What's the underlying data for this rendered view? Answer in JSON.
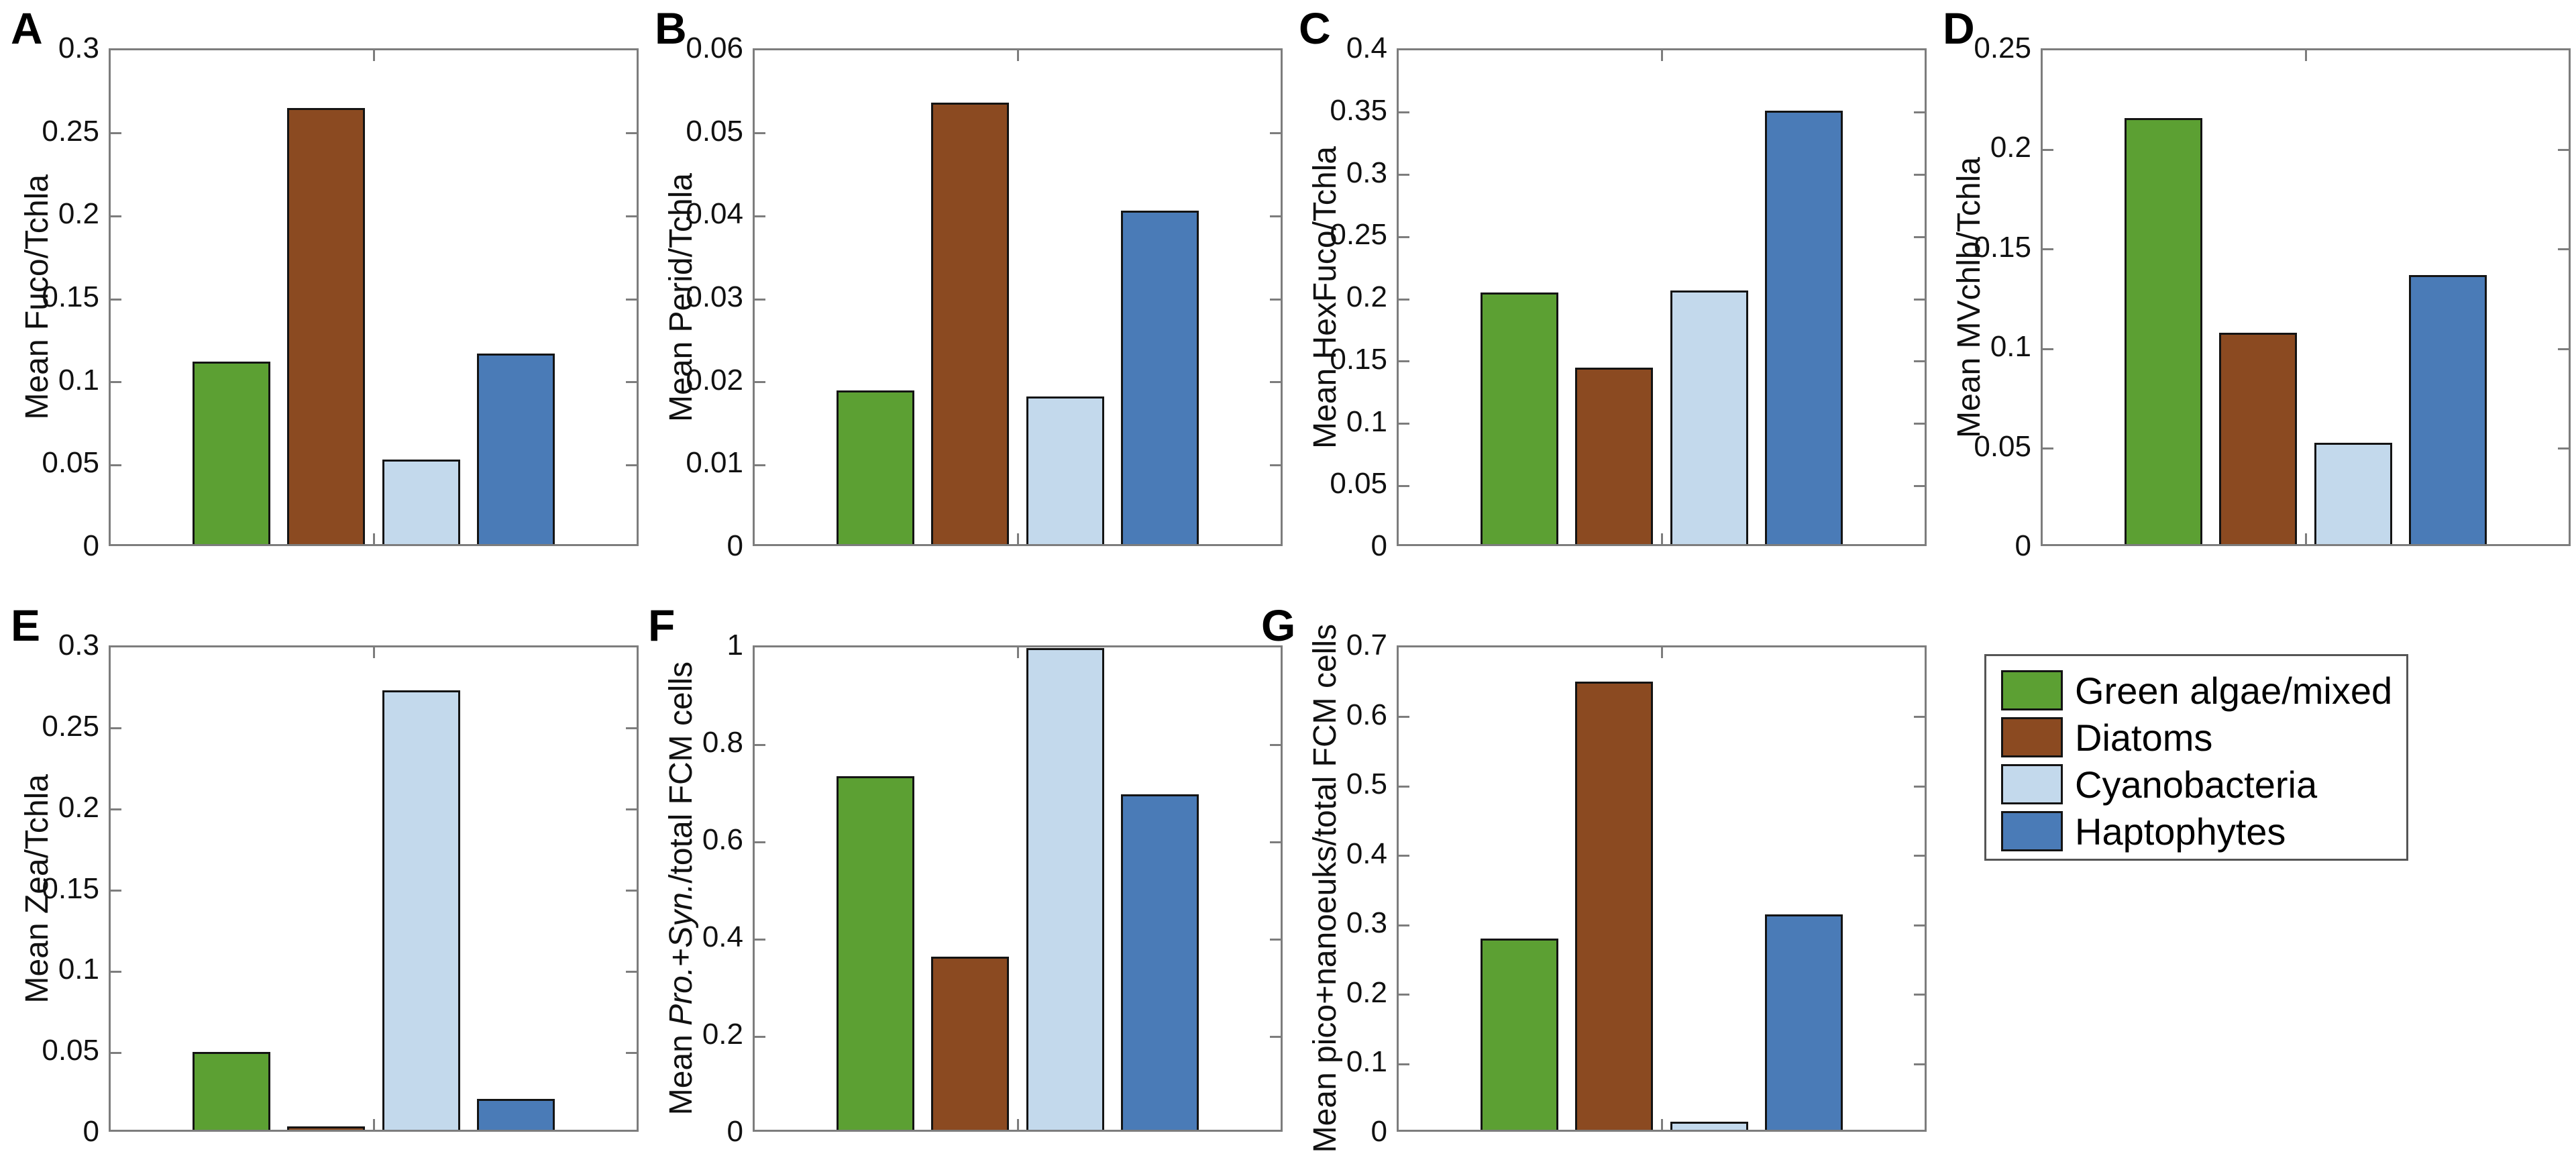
{
  "figure": {
    "background": "#ffffff",
    "axis_color": "#7d7d7d",
    "text_color": "#111111"
  },
  "legend": {
    "items": [
      {
        "label": "Green algae/mixed",
        "color": "#5CA033"
      },
      {
        "label": "Diatoms",
        "color": "#8B4A21"
      },
      {
        "label": "Cyanobacteria",
        "color": "#C3D9EC"
      },
      {
        "label": "Haptophytes",
        "color": "#4A7BB7"
      }
    ],
    "position": "bottom-right"
  },
  "chart_data": [
    {
      "panel": "A",
      "type": "bar",
      "ylabel": "Mean Fuco/Tchla",
      "ylabel_parts": [
        {
          "text": "Mean Fuco/Tchla",
          "italic": false
        }
      ],
      "categories": [
        "Green algae/mixed",
        "Diatoms",
        "Cyanobacteria",
        "Haptophytes"
      ],
      "values": [
        0.11,
        0.263,
        0.051,
        0.115
      ],
      "ylim": [
        0,
        0.3
      ],
      "yticks": [
        0,
        0.05,
        0.1,
        0.15,
        0.2,
        0.25,
        0.3
      ],
      "ytick_labels": [
        "0",
        "0.05",
        "0.1",
        "0.15",
        "0.2",
        "0.25",
        "0.3"
      ]
    },
    {
      "panel": "B",
      "type": "bar",
      "ylabel": "Mean Perid/Tchla",
      "ylabel_parts": [
        {
          "text": "Mean Perid/Tchla",
          "italic": false
        }
      ],
      "categories": [
        "Green algae/mixed",
        "Diatoms",
        "Cyanobacteria",
        "Haptophytes"
      ],
      "values": [
        0.0185,
        0.0532,
        0.0178,
        0.0402
      ],
      "ylim": [
        0,
        0.06
      ],
      "yticks": [
        0,
        0.01,
        0.02,
        0.03,
        0.04,
        0.05,
        0.06
      ],
      "ytick_labels": [
        "0",
        "0.01",
        "0.02",
        "0.03",
        "0.04",
        "0.05",
        "0.06"
      ]
    },
    {
      "panel": "C",
      "type": "bar",
      "ylabel": "Mean HexFuco/Tchla",
      "ylabel_parts": [
        {
          "text": "Mean HexFuco/Tchla",
          "italic": false
        }
      ],
      "categories": [
        "Green algae/mixed",
        "Diatoms",
        "Cyanobacteria",
        "Haptophytes"
      ],
      "values": [
        0.202,
        0.142,
        0.204,
        0.348
      ],
      "ylim": [
        0,
        0.4
      ],
      "yticks": [
        0,
        0.05,
        0.1,
        0.15,
        0.2,
        0.25,
        0.3,
        0.35,
        0.4
      ],
      "ytick_labels": [
        "0",
        "0.05",
        "0.1",
        "0.15",
        "0.2",
        "0.25",
        "0.3",
        "0.35",
        "0.4"
      ]
    },
    {
      "panel": "D",
      "type": "bar",
      "ylabel": "Mean MVchlb/Tchla",
      "ylabel_parts": [
        {
          "text": "Mean MVchlb/Tchla",
          "italic": false
        }
      ],
      "categories": [
        "Green algae/mixed",
        "Diatoms",
        "Cyanobacteria",
        "Haptophytes"
      ],
      "values": [
        0.214,
        0.106,
        0.051,
        0.135
      ],
      "ylim": [
        0,
        0.25
      ],
      "yticks": [
        0,
        0.05,
        0.1,
        0.15,
        0.2,
        0.25
      ],
      "ytick_labels": [
        "0",
        "0.05",
        "0.1",
        "0.15",
        "0.2",
        "0.25"
      ]
    },
    {
      "panel": "E",
      "type": "bar",
      "ylabel": "Mean Zea/Tchla",
      "ylabel_parts": [
        {
          "text": "Mean Zea/Tchla",
          "italic": false
        }
      ],
      "categories": [
        "Green algae/mixed",
        "Diatoms",
        "Cyanobacteria",
        "Haptophytes"
      ],
      "values": [
        0.048,
        0.002,
        0.271,
        0.019
      ],
      "ylim": [
        0,
        0.3
      ],
      "yticks": [
        0,
        0.05,
        0.1,
        0.15,
        0.2,
        0.25,
        0.3
      ],
      "ytick_labels": [
        "0",
        "0.05",
        "0.1",
        "0.15",
        "0.2",
        "0.25",
        "0.3"
      ]
    },
    {
      "panel": "F",
      "type": "bar",
      "ylabel": "Mean Pro.+Syn./total FCM cells",
      "ylabel_parts": [
        {
          "text": "Mean ",
          "italic": false
        },
        {
          "text": "Pro.",
          "italic": true
        },
        {
          "text": "+",
          "italic": false
        },
        {
          "text": "Syn.",
          "italic": true
        },
        {
          "text": "/total FCM cells",
          "italic": false
        }
      ],
      "categories": [
        "Green algae/mixed",
        "Diatoms",
        "Cyanobacteria",
        "Haptophytes"
      ],
      "values": [
        0.727,
        0.356,
        0.99,
        0.69
      ],
      "ylim": [
        0,
        1
      ],
      "yticks": [
        0,
        0.2,
        0.4,
        0.6,
        0.8,
        1
      ],
      "ytick_labels": [
        "0",
        "0.2",
        "0.4",
        "0.6",
        "0.8",
        "1"
      ]
    },
    {
      "panel": "G",
      "type": "bar",
      "ylabel": "Mean pico+nanoeuks/total FCM cells",
      "ylabel_parts": [
        {
          "text": "Mean pico+nanoeuks/total FCM cells",
          "italic": false
        }
      ],
      "categories": [
        "Green algae/mixed",
        "Diatoms",
        "Cyanobacteria",
        "Haptophytes"
      ],
      "values": [
        0.275,
        0.645,
        0.012,
        0.31
      ],
      "ylim": [
        0,
        0.7
      ],
      "yticks": [
        0,
        0.1,
        0.2,
        0.3,
        0.4,
        0.5,
        0.6,
        0.7
      ],
      "ytick_labels": [
        "0",
        "0.1",
        "0.2",
        "0.3",
        "0.4",
        "0.5",
        "0.6",
        "0.7"
      ]
    }
  ]
}
